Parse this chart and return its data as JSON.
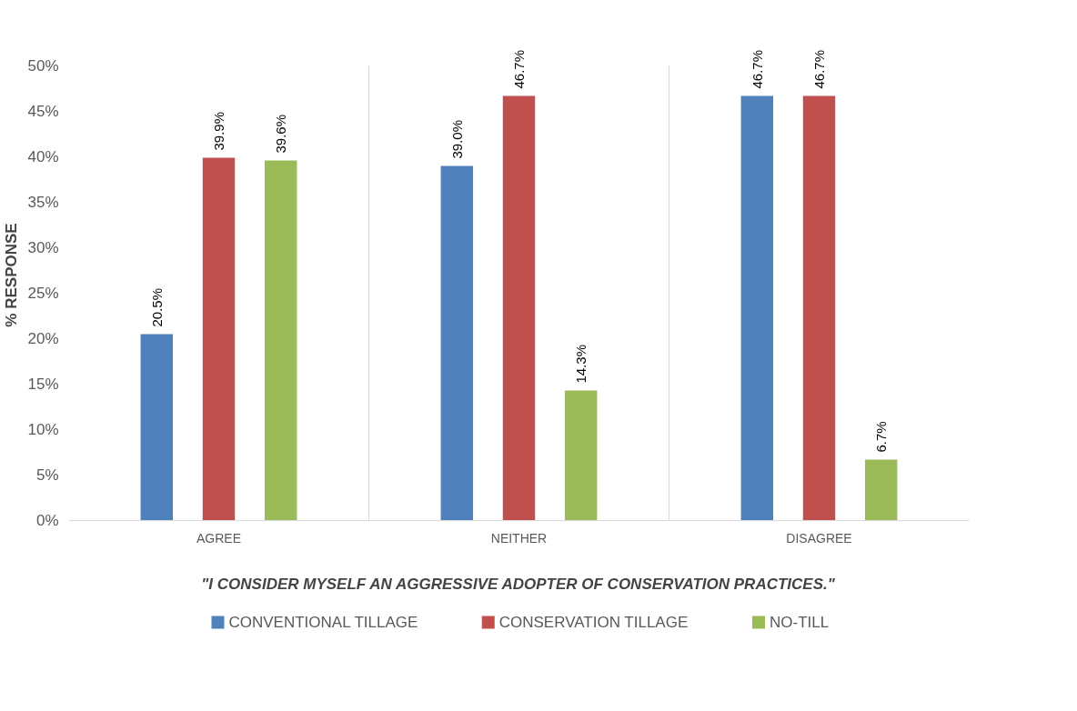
{
  "chart_data": {
    "type": "bar",
    "xlabel": "\"I CONSIDER MYSELF AN AGGRESSIVE ADOPTER OF CONSERVATION PRACTICES.\"",
    "ylabel": "% RESPONSE",
    "categories": [
      "AGREE",
      "NEITHER",
      "DISAGREE"
    ],
    "series": [
      {
        "name": "CONVENTIONAL TILLAGE",
        "color": "#4f81bd",
        "values": [
          20.5,
          39.0,
          46.7
        ],
        "value_labels": [
          "20.5%",
          "39.0%",
          "46.7%"
        ]
      },
      {
        "name": "CONSERVATION TILLAGE",
        "color": "#c0504d",
        "values": [
          39.9,
          46.7,
          46.7
        ],
        "value_labels": [
          "39.9%",
          "46.7%",
          "46.7%"
        ]
      },
      {
        "name": "NO-TILL",
        "color": "#9bbb59",
        "values": [
          39.6,
          14.3,
          6.7
        ],
        "value_labels": [
          "39.6%",
          "14.3%",
          "6.7%"
        ]
      }
    ],
    "ylim": [
      0,
      50
    ],
    "yticks": [
      {
        "value": 0,
        "label": "0%"
      },
      {
        "value": 5,
        "label": "5%"
      },
      {
        "value": 10,
        "label": "10%"
      },
      {
        "value": 15,
        "label": "15%"
      },
      {
        "value": 20,
        "label": "20%"
      },
      {
        "value": 25,
        "label": "25%"
      },
      {
        "value": 30,
        "label": "30%"
      },
      {
        "value": 35,
        "label": "35%"
      },
      {
        "value": 40,
        "label": "40%"
      },
      {
        "value": 45,
        "label": "45%"
      },
      {
        "value": 50,
        "label": "50%"
      }
    ],
    "grid": "x",
    "legend": "bottom"
  }
}
